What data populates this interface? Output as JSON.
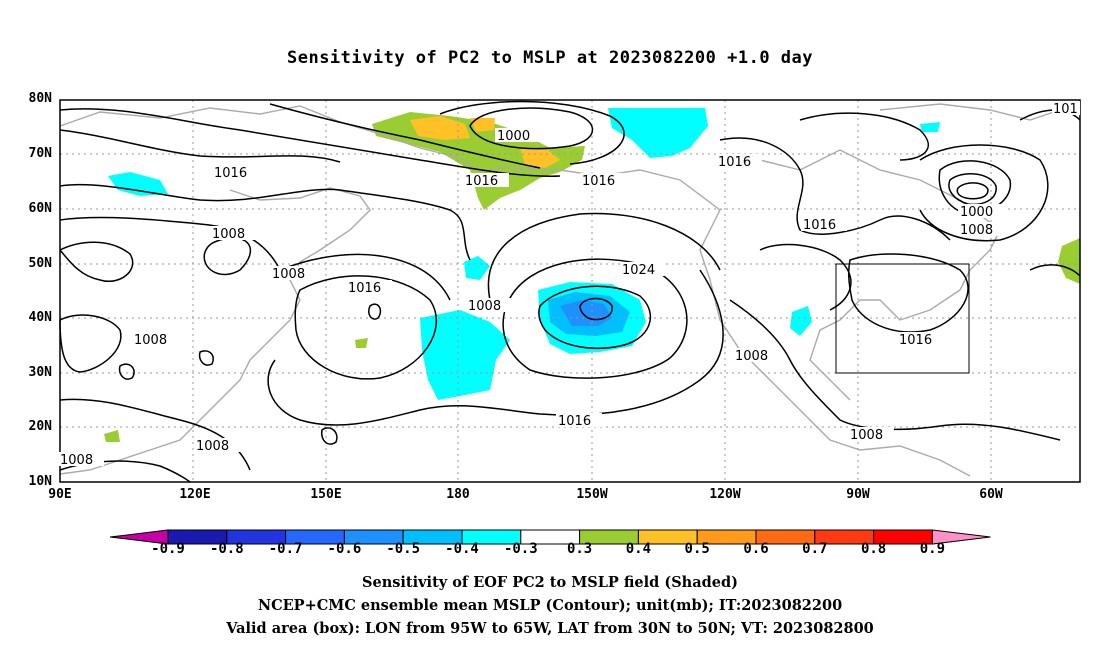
{
  "title": "Sensitivity of PC2 to MSLP at 2023082200 +1.0 day",
  "lat_labels": [
    "80N",
    "70N",
    "60N",
    "50N",
    "40N",
    "30N",
    "20N",
    "10N"
  ],
  "lon_labels": [
    "90E",
    "120E",
    "150E",
    "180",
    "150W",
    "120W",
    "90W",
    "60W"
  ],
  "colorbar": {
    "labels": [
      "-0.9",
      "-0.8",
      "-0.7",
      "-0.6",
      "-0.5",
      "-0.4",
      "-0.3",
      "0.3",
      "0.4",
      "0.5",
      "0.6",
      "0.7",
      "0.8",
      "0.9"
    ],
    "colors": [
      "#c400a6",
      "#1a1ab0",
      "#2035e0",
      "#2468ff",
      "#1e90ff",
      "#00bfff",
      "#00ffff",
      "#ffffff",
      "#9acd32",
      "#ffc125",
      "#ff9a1a",
      "#ff6a12",
      "#ff3a12",
      "#ff0000",
      "#ff90c8"
    ]
  },
  "contour_labels": [
    "1016",
    "1000",
    "1016",
    "1016",
    "1016",
    "1008",
    "1008",
    "1016",
    "1024",
    "1008",
    "1008",
    "1016",
    "1000",
    "1008",
    "1008",
    "1016",
    "1008",
    "1008",
    "1016",
    "1008",
    "101"
  ],
  "footer": {
    "line1": "Sensitivity of EOF PC2 to MSLP field (Shaded)",
    "line2": "NCEP+CMC ensemble mean MSLP (Contour); unit(mb); IT:2023082200",
    "line3": "Valid area (box): LON from 95W to 65W, LAT from 30N to 50N; VT: 2023082800"
  }
}
